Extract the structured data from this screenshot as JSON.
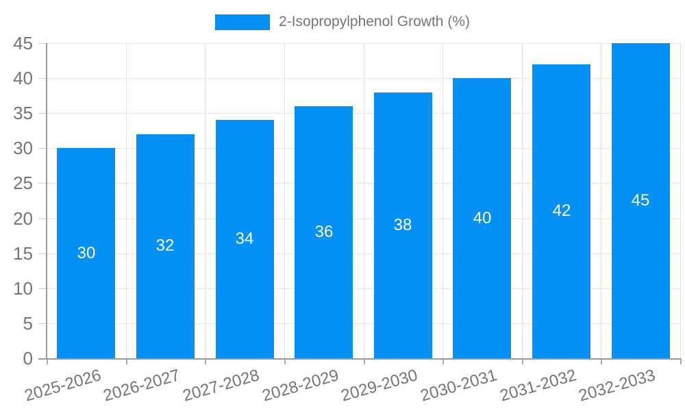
{
  "chart_data": {
    "type": "bar",
    "title": "",
    "categories": [
      "2025-2026",
      "2026-2027",
      "2027-2028",
      "2028-2029",
      "2029-2030",
      "2030-2031",
      "2031-2032",
      "2032-2033"
    ],
    "series": [
      {
        "name": "2-Isopropylphenol Growth (%)",
        "values": [
          30,
          32,
          34,
          36,
          38,
          40,
          42,
          45
        ]
      }
    ],
    "value_labels": [
      30,
      32,
      34,
      36,
      38,
      40,
      42,
      45
    ],
    "xlabel": "",
    "ylabel": "",
    "ylim": [
      0,
      45
    ],
    "y_ticks": [
      0,
      5,
      10,
      15,
      20,
      25,
      30,
      35,
      40,
      45
    ],
    "grid": true,
    "legend_position": "top-center",
    "x_label_rotation_deg": -16,
    "value_label_position": "inside-center",
    "colors": {
      "bar": "#0590F5",
      "grid": "#e4e4e4",
      "axis": "#999999",
      "tick_y": "#cccccc",
      "tick_x": "#aaaaaa",
      "text": "#757575",
      "value_label": "#ffffff",
      "background": "#ffffff"
    }
  }
}
